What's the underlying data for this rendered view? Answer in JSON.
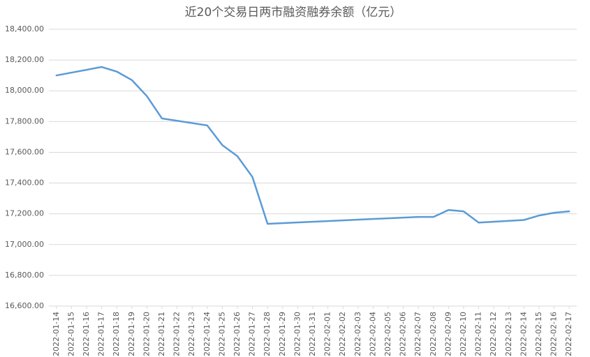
{
  "chart_data": {
    "type": "line",
    "title": "近20个交易日两市融资融券余额（亿元）",
    "x": [
      "2022-01-14",
      "2022-01-17",
      "2022-01-18",
      "2022-01-19",
      "2022-01-20",
      "2022-01-21",
      "2022-01-24",
      "2022-01-25",
      "2022-01-26",
      "2022-01-27",
      "2022-01-28",
      "2022-02-07",
      "2022-02-08",
      "2022-02-09",
      "2022-02-10",
      "2022-02-11",
      "2022-02-14",
      "2022-02-15",
      "2022-02-16",
      "2022-02-17"
    ],
    "series": [
      {
        "name": "两市融资融券余额",
        "color": "#5b9bd5",
        "values": [
          18100,
          18155,
          18125,
          18070,
          17965,
          17820,
          17775,
          17647,
          17575,
          17439,
          17135,
          17180,
          17180,
          17225,
          17216,
          17143,
          17160,
          17189,
          17207,
          17216
        ]
      }
    ],
    "xlim": [
      "2022-01-14",
      "2022-02-17"
    ],
    "xticks": [
      "2022-01-14",
      "2022-01-15",
      "2022-01-16",
      "2022-01-17",
      "2022-01-18",
      "2022-01-19",
      "2022-01-20",
      "2022-01-21",
      "2022-01-22",
      "2022-01-23",
      "2022-01-24",
      "2022-01-25",
      "2022-01-26",
      "2022-01-27",
      "2022-01-28",
      "2022-01-29",
      "2022-01-30",
      "2022-01-31",
      "2022-02-01",
      "2022-02-02",
      "2022-02-03",
      "2022-02-04",
      "2022-02-05",
      "2022-02-06",
      "2022-02-07",
      "2022-02-08",
      "2022-02-09",
      "2022-02-10",
      "2022-02-11",
      "2022-02-12",
      "2022-02-13",
      "2022-02-14",
      "2022-02-15",
      "2022-02-16",
      "2022-02-17"
    ],
    "ylim": [
      16600,
      18400
    ],
    "yticks": [
      {
        "value": 16600,
        "label": "16,600.00"
      },
      {
        "value": 16800,
        "label": "16,800.00"
      },
      {
        "value": 17000,
        "label": "17,000.00"
      },
      {
        "value": 17200,
        "label": "17,200.00"
      },
      {
        "value": 17400,
        "label": "17,400.00"
      },
      {
        "value": 17600,
        "label": "17,600.00"
      },
      {
        "value": 17800,
        "label": "17,800.00"
      },
      {
        "value": 18000,
        "label": "18,000.00"
      },
      {
        "value": 18200,
        "label": "18,200.00"
      },
      {
        "value": 18400,
        "label": "18,400.00"
      }
    ],
    "grid": true
  }
}
